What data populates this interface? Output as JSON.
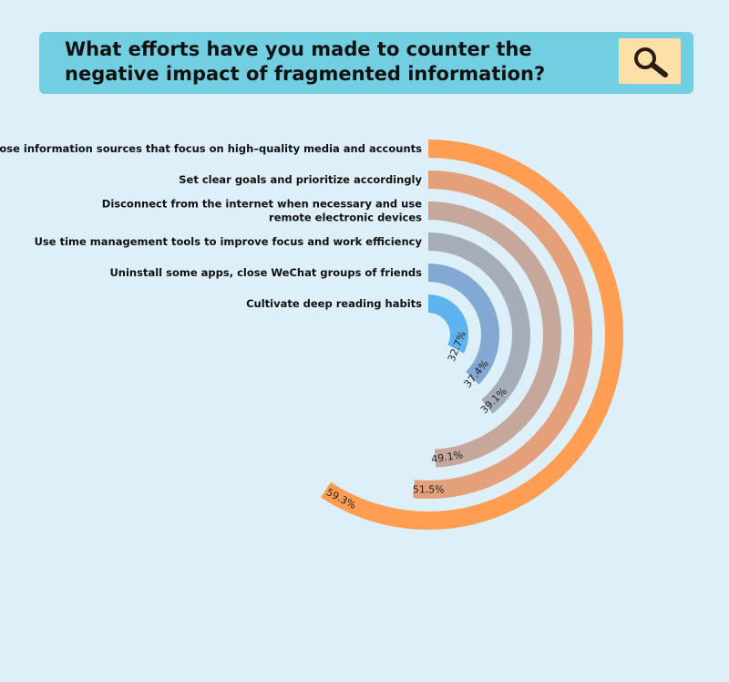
{
  "header": {
    "title": "What efforts have you made to counter the negative impact of fragmented information?",
    "icon": "magnifier-icon"
  },
  "colors": {
    "background": "#ddeff8",
    "banner": "#72cfe1",
    "icon_box": "#fde0a8"
  },
  "chart_data": {
    "type": "radial-bar",
    "title": "What efforts have you made to counter the negative impact of fragmented information?",
    "categories": [
      [
        "Choose information sources that focus on high–quality media and accounts"
      ],
      [
        "Set clear goals and prioritize accordingly"
      ],
      [
        "Disconnect from the internet when necessary and use",
        "remote electronic devices"
      ],
      [
        "Use time management tools to improve focus and work efficiency"
      ],
      [
        "Uninstall some apps, close WeChat groups of friends"
      ],
      [
        "Cultivate deep reading habits"
      ]
    ],
    "values": [
      59.3,
      51.5,
      49.1,
      39.1,
      37.4,
      32.7
    ],
    "value_labels": [
      "59.3%",
      "51.5%",
      "49.1%",
      "39.1%",
      "37.4%",
      "32.7%"
    ],
    "colors": [
      "#ff9d52",
      "#e3a07a",
      "#c6a79c",
      "#a6adba",
      "#82a9d3",
      "#5db3f0"
    ],
    "max_value": 100,
    "unit": "%"
  }
}
